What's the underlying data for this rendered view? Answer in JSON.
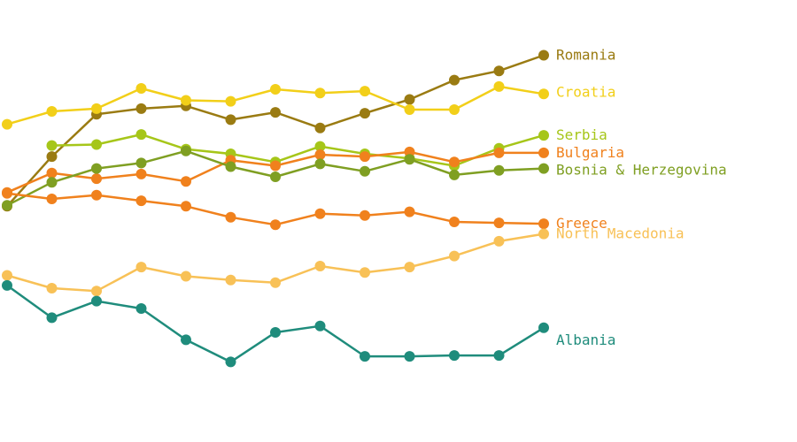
{
  "chart_data": {
    "type": "line",
    "title": "",
    "xlabel": "",
    "ylabel": "",
    "x": [
      1,
      2,
      3,
      4,
      5,
      6,
      7,
      8,
      9,
      10,
      11,
      12,
      13
    ],
    "ylim": [
      0,
      480
    ],
    "grid": false,
    "legend": "direct-labels-right",
    "series": [
      {
        "name": "Romania",
        "color": "#9a7b12",
        "values": [
          256,
          310,
          356,
          362,
          365,
          350,
          358,
          341,
          357,
          372,
          393,
          403,
          420
        ]
      },
      {
        "name": "Croatia",
        "color": "#f2cf19",
        "values": [
          345,
          359,
          362,
          384,
          371,
          370,
          383,
          379,
          381,
          361,
          361,
          386,
          378
        ]
      },
      {
        "name": "Serbia",
        "color": "#a6c619",
        "values": [
          null,
          322,
          323,
          334,
          318,
          313,
          304,
          321,
          313,
          308,
          300,
          319,
          333
        ]
      },
      {
        "name": "Bulgaria",
        "color": "#f0811d",
        "values": [
          271,
          292,
          286,
          291,
          283,
          306,
          300,
          312,
          310,
          315,
          304,
          314,
          314
        ]
      },
      {
        "name": "Bosnia & Herzegovina",
        "color": "#7f9f22",
        "values": [
          257,
          282,
          297,
          303,
          316,
          299,
          288,
          302,
          294,
          307,
          290,
          295,
          297
        ]
      },
      {
        "name": "Greece",
        "color": "#f0811d",
        "values": [
          270,
          264,
          268,
          262,
          256,
          244,
          236,
          248,
          246,
          250,
          239,
          238,
          237
        ]
      },
      {
        "name": "North Macedonia",
        "color": "#f8c157",
        "values": [
          181,
          167,
          164,
          190,
          180,
          176,
          173,
          191,
          184,
          190,
          202,
          218,
          226
        ]
      },
      {
        "name": "Albania",
        "color": "#1f8c7c",
        "values": [
          170,
          135,
          153,
          145,
          111,
          87,
          119,
          126,
          93,
          93,
          94,
          94,
          124
        ]
      }
    ]
  }
}
